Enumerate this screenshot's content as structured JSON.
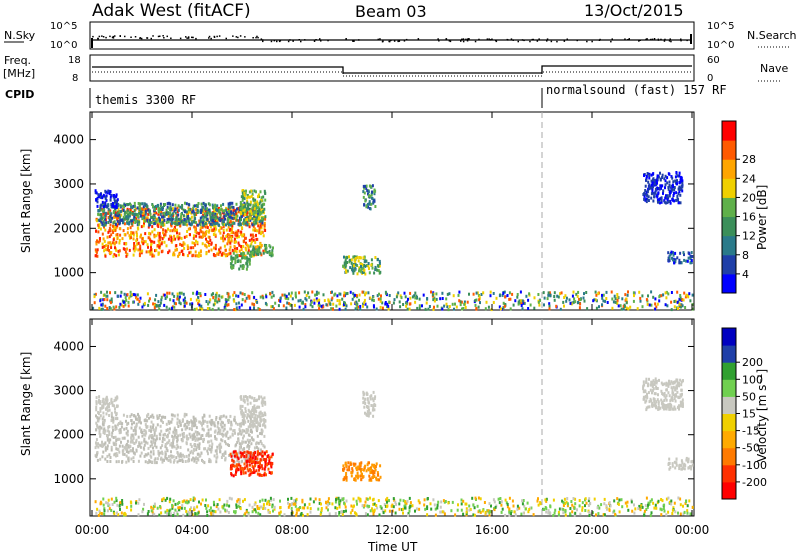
{
  "header": {
    "station": "Adak West (fitACF)",
    "beam": "Beam 03",
    "date": "13/Oct/2015"
  },
  "top_panels": {
    "nsky_label": "N.Sky",
    "nsky_ticks": [
      "10^5",
      "10^0"
    ],
    "nsearch_label": "N.Search",
    "nsearch_ticks": [
      "10^5",
      "10^0"
    ],
    "freq_label": "Freq.",
    "freq_unit": "[MHz]",
    "freq_ticks": [
      "18",
      "8"
    ],
    "nave_label": "Nave",
    "nave_ticks": [
      "60",
      "0"
    ],
    "cpid_label": "CPID",
    "cpid_modes": [
      {
        "name": "themis 3300 RF",
        "start_hour": 0,
        "end_hour": 18
      },
      {
        "name": "normalsound (fast) 157 RF",
        "start_hour": 18,
        "end_hour": 24
      }
    ]
  },
  "chart_data": [
    {
      "type": "heatmap",
      "name": "power",
      "ylabel": "Slant Range [km]",
      "yticks": [
        1000,
        2000,
        3000,
        4000
      ],
      "ylim": [
        180,
        4600
      ],
      "xlim": [
        0,
        24
      ],
      "colorbar_label": "Power [dB]",
      "colorbar_ticks": [
        "4",
        "8",
        "12",
        "16",
        "20",
        "24",
        "28"
      ],
      "colorbar_colors": [
        "#0000ff",
        "#1f3fa8",
        "#2a7a8a",
        "#3b8f5a",
        "#5fb04a",
        "#f0d000",
        "#ffa500",
        "#ff5a00",
        "#ff0000"
      ],
      "scatter_regions": [
        {
          "x0": 0.1,
          "x1": 6.9,
          "y0": 1400,
          "y1": 2500,
          "colors": [
            "#ff2000",
            "#ff5a00",
            "#ffa500",
            "#f0d000"
          ]
        },
        {
          "x0": 0.2,
          "x1": 6.8,
          "y0": 2100,
          "y1": 2600,
          "colors": [
            "#1f3fa8",
            "#2a7a8a",
            "#3b8f5a",
            "#5fb04a"
          ]
        },
        {
          "x0": 0.1,
          "x1": 1.0,
          "y0": 2500,
          "y1": 2900,
          "colors": [
            "#1f3fa8",
            "#0000ff"
          ]
        },
        {
          "x0": 5.9,
          "x1": 6.9,
          "y0": 2200,
          "y1": 2900,
          "colors": [
            "#5fb04a",
            "#f0d000",
            "#3b8f5a"
          ]
        },
        {
          "x0": 5.5,
          "x1": 6.3,
          "y0": 1100,
          "y1": 1500,
          "colors": [
            "#3b8f5a",
            "#5fb04a"
          ]
        },
        {
          "x0": 6.3,
          "x1": 7.2,
          "y0": 1400,
          "y1": 1650,
          "colors": [
            "#3b8f5a",
            "#5fb04a"
          ]
        },
        {
          "x0": 10.0,
          "x1": 11.5,
          "y0": 1000,
          "y1": 1400,
          "colors": [
            "#3b8f5a",
            "#5fb04a",
            "#2a7a8a",
            "#f0d000"
          ]
        },
        {
          "x0": 10.8,
          "x1": 11.3,
          "y0": 2450,
          "y1": 3000,
          "colors": [
            "#1f3fa8",
            "#2a7a8a",
            "#5fb04a"
          ]
        },
        {
          "x0": 23.0,
          "x1": 24.0,
          "y0": 1250,
          "y1": 1500,
          "colors": [
            "#1f3fa8",
            "#0000ff",
            "#2a7a8a"
          ]
        },
        {
          "x0": 22.0,
          "x1": 23.6,
          "y0": 2600,
          "y1": 3300,
          "colors": [
            "#1f3fa8",
            "#0000ff"
          ]
        },
        {
          "x0": 0.0,
          "x1": 24.0,
          "y0": 200,
          "y1": 600,
          "colors": [
            "#0000ff",
            "#3b8f5a",
            "#f0d000",
            "#ff5a00",
            "#2a7a8a",
            "#5fb04a"
          ]
        }
      ]
    },
    {
      "type": "heatmap",
      "name": "velocity",
      "ylabel": "Slant Range [km]",
      "yticks": [
        1000,
        2000,
        3000,
        4000
      ],
      "ylim": [
        180,
        4600
      ],
      "xlim": [
        0,
        24
      ],
      "xticks": [
        "00:00",
        "04:00",
        "08:00",
        "12:00",
        "16:00",
        "20:00",
        "00:00"
      ],
      "xlabel": "Time UT",
      "colorbar_label": "Velocity [m s⁻¹]",
      "colorbar_ticks": [
        "-200",
        "-100",
        "-50",
        "-15",
        "15",
        "50",
        "100",
        "200"
      ],
      "colorbar_colors": [
        "#ff0000",
        "#ff3000",
        "#ff7a00",
        "#ffaa00",
        "#f0d000",
        "#c8c8c0",
        "#70d050",
        "#30a030",
        "#1f3fa8",
        "#0000c0"
      ],
      "scatter_regions": [
        {
          "x0": 0.1,
          "x1": 6.9,
          "y0": 1400,
          "y1": 2500,
          "colors": [
            "#c8c8c0",
            "#bdbdb5"
          ]
        },
        {
          "x0": 0.1,
          "x1": 1.0,
          "y0": 2500,
          "y1": 2900,
          "colors": [
            "#c8c8c0"
          ]
        },
        {
          "x0": 5.9,
          "x1": 6.9,
          "y0": 2200,
          "y1": 2900,
          "colors": [
            "#c8c8c0"
          ]
        },
        {
          "x0": 5.5,
          "x1": 7.2,
          "y0": 1100,
          "y1": 1650,
          "colors": [
            "#ff3000",
            "#ff5a00",
            "#ff0000"
          ]
        },
        {
          "x0": 10.0,
          "x1": 11.5,
          "y0": 1000,
          "y1": 1400,
          "colors": [
            "#ff7a00",
            "#ff9a00"
          ]
        },
        {
          "x0": 10.8,
          "x1": 11.3,
          "y0": 2450,
          "y1": 3000,
          "colors": [
            "#c8c8c0"
          ]
        },
        {
          "x0": 23.0,
          "x1": 24.0,
          "y0": 1250,
          "y1": 1500,
          "colors": [
            "#c8c8c0"
          ]
        },
        {
          "x0": 22.0,
          "x1": 23.6,
          "y0": 2600,
          "y1": 3300,
          "colors": [
            "#c8c8c0"
          ]
        },
        {
          "x0": 0.0,
          "x1": 24.0,
          "y0": 200,
          "y1": 600,
          "colors": [
            "#f0d000",
            "#ffaa00",
            "#70d050",
            "#30a030",
            "#c8c8c0"
          ]
        }
      ]
    }
  ],
  "separator_hour": 18
}
